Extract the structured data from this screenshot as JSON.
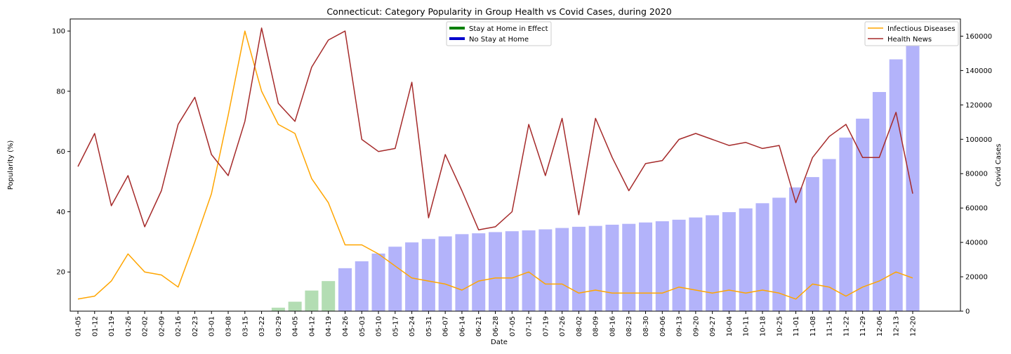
{
  "chart_data": {
    "type": "bar",
    "title": "Connecticut: Category Popularity in Group Health vs Covid Cases, during 2020",
    "xlabel": "Date",
    "ylabel_left": "Popularity (%)",
    "ylabel_right": "Covid Cases",
    "ylim_left": [
      7,
      104
    ],
    "ylim_right": [
      0,
      170000
    ],
    "yticks_left": [
      20,
      40,
      60,
      80,
      100
    ],
    "yticks_right": [
      0,
      20000,
      40000,
      60000,
      80000,
      100000,
      120000,
      140000,
      160000
    ],
    "grid": false,
    "categories": [
      "01-05",
      "01-12",
      "01-19",
      "01-26",
      "02-02",
      "02-09",
      "02-16",
      "02-23",
      "03-01",
      "03-08",
      "03-15",
      "03-22",
      "03-29",
      "04-05",
      "04-12",
      "04-19",
      "04-26",
      "05-03",
      "05-10",
      "05-17",
      "05-24",
      "05-31",
      "06-07",
      "06-14",
      "06-21",
      "06-28",
      "07-05",
      "07-12",
      "07-19",
      "07-26",
      "08-02",
      "08-09",
      "08-16",
      "08-23",
      "08-30",
      "09-06",
      "09-13",
      "09-20",
      "09-27",
      "10-04",
      "10-11",
      "10-18",
      "10-25",
      "11-01",
      "11-08",
      "11-15",
      "11-22",
      "11-29",
      "12-06",
      "12-13",
      "12-20"
    ],
    "covid_cases": [
      0,
      0,
      0,
      0,
      0,
      0,
      0,
      0,
      0,
      0,
      0,
      0,
      2000,
      5500,
      12000,
      17500,
      25000,
      29000,
      33500,
      37500,
      40000,
      42000,
      43500,
      44800,
      45300,
      46000,
      46500,
      47000,
      47600,
      48400,
      49100,
      49600,
      50300,
      50800,
      51600,
      52300,
      53200,
      54500,
      55800,
      57600,
      59800,
      62800,
      66000,
      72000,
      78000,
      88500,
      101000,
      112000,
      127500,
      146500,
      162000
    ],
    "stay_at_home": [
      false,
      false,
      false,
      false,
      false,
      false,
      false,
      false,
      false,
      false,
      false,
      false,
      true,
      true,
      true,
      true,
      false,
      false,
      false,
      false,
      false,
      false,
      false,
      false,
      false,
      false,
      false,
      false,
      false,
      false,
      false,
      false,
      false,
      false,
      false,
      false,
      false,
      false,
      false,
      false,
      false,
      false,
      false,
      false,
      false,
      false,
      false,
      false,
      false,
      false,
      false
    ],
    "series": [
      {
        "name": "Infectious Diseases",
        "color": "#FFA500",
        "values": [
          11,
          12,
          17,
          26,
          20,
          19,
          15,
          30,
          46,
          72,
          100,
          80,
          69,
          66,
          51,
          43,
          29,
          29,
          26,
          22,
          18,
          17,
          16,
          14,
          17,
          18,
          18,
          20,
          16,
          16,
          13,
          14,
          13,
          13,
          13,
          13,
          15,
          14,
          13,
          14,
          13,
          14,
          13,
          11,
          16,
          15,
          12,
          15,
          17,
          20,
          18
        ]
      },
      {
        "name": "Health News",
        "color": "#A52A2A",
        "values": [
          55,
          66,
          42,
          52,
          35,
          47,
          69,
          78,
          59,
          52,
          70,
          101,
          76,
          70,
          88,
          97,
          100,
          64,
          60,
          61,
          83,
          38,
          59,
          47,
          34,
          35,
          40,
          69,
          52,
          71,
          39,
          71,
          58,
          47,
          56,
          57,
          64,
          66,
          64,
          62,
          63,
          61,
          62,
          43,
          58,
          65,
          69,
          58,
          58,
          73,
          46
        ]
      }
    ],
    "legend_left": [
      {
        "label": "Stay at Home in Effect",
        "color": "#008000"
      },
      {
        "label": "No Stay at Home",
        "color": "#0000CD"
      }
    ],
    "bar_colors": {
      "stay": "#B3DDB3",
      "no_stay": "#B3B3FA"
    },
    "legend_left_placement": "top-center",
    "legend_right_placement": "top-right"
  }
}
